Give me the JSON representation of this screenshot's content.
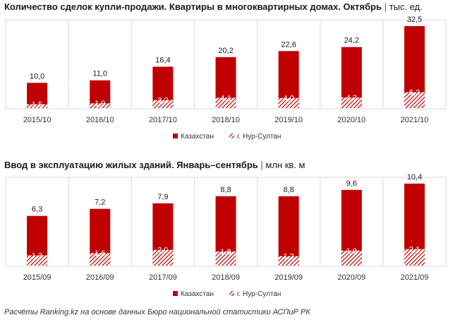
{
  "footer": "Расчёты Ranking.kz на основе данных Бюро национальной статистики АСПиР РК",
  "chart_data": [
    {
      "type": "bar",
      "title": "Количество сделок купли-продажи. Квартиры в многоквартирных домах. Октябрь",
      "unit": "тыс. ед.",
      "categories": [
        "2015/10",
        "2016/10",
        "2017/10",
        "2018/10",
        "2019/10",
        "2020/10",
        "2021/10"
      ],
      "series": [
        {
          "name": "Казахстан",
          "values": [
            10.0,
            11.0,
            16.4,
            20.2,
            22.6,
            24.2,
            32.5
          ],
          "labels": [
            "10,0",
            "11,0",
            "16,4",
            "20,2",
            "22,6",
            "24,2",
            "32,5"
          ]
        },
        {
          "name": "г. Нур-Султан",
          "values": [
            1.5,
            1.9,
            3.2,
            4.1,
            4.0,
            4.2,
            6.3
          ],
          "labels": [
            "1,5",
            "1,9",
            "3,2",
            "4,1",
            "4,0",
            "4,2",
            "6,3"
          ]
        }
      ],
      "ylim": [
        0,
        35
      ],
      "grid": "vertical",
      "legend": "bottom",
      "colors": {
        "main": "#c00000",
        "hatch": "#c00000",
        "grid": "#d9d9d9"
      }
    },
    {
      "type": "bar",
      "title": "Ввод в эксплуатацию жилых зданий. Январь–сентябрь",
      "unit": "млн кв. м",
      "categories": [
        "2015/09",
        "2016/09",
        "2017/09",
        "2018/09",
        "2019/09",
        "2020/09",
        "2021/09"
      ],
      "series": [
        {
          "name": "Казахстан",
          "values": [
            6.3,
            7.2,
            7.9,
            8.8,
            8.8,
            9.6,
            10.4
          ],
          "labels": [
            "6,3",
            "7,2",
            "7,9",
            "8,8",
            "8,8",
            "9,6",
            "10,4"
          ]
        },
        {
          "name": "г. Нур-Султан",
          "values": [
            1.3,
            1.6,
            2.0,
            1.8,
            1.2,
            1.9,
            2.1
          ],
          "labels": [
            "1,3",
            "1,6",
            "2,0",
            "1,8",
            "1,2",
            "1,9",
            "2,1"
          ]
        }
      ],
      "ylim": [
        0,
        11.2
      ],
      "grid": "vertical",
      "legend": "bottom",
      "colors": {
        "main": "#c00000",
        "hatch": "#c00000",
        "grid": "#d9d9d9"
      }
    }
  ]
}
